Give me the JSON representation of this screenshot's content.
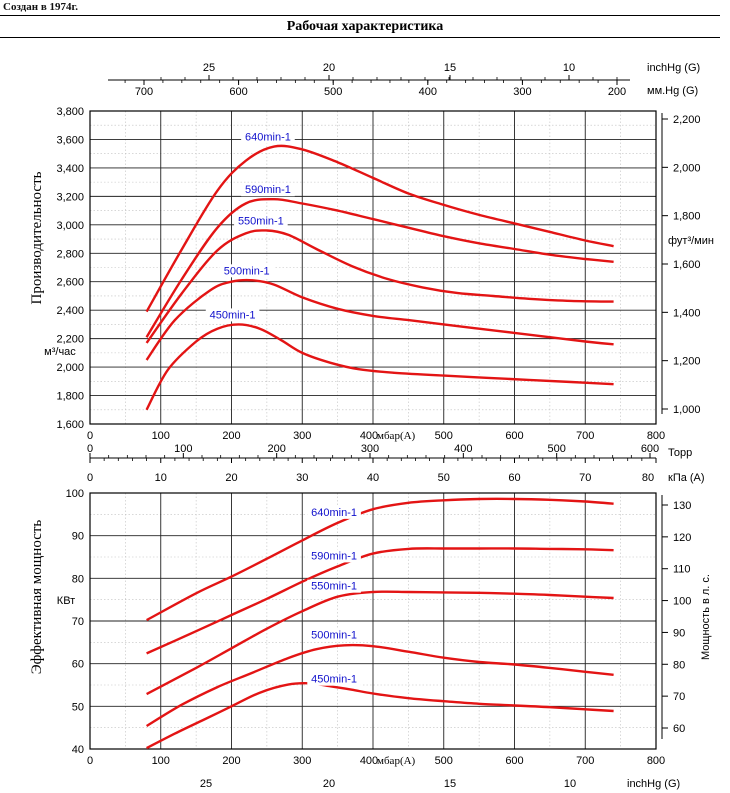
{
  "header": {
    "created": "Создан в 1974г.",
    "title": "Рабочая характеристика"
  },
  "colors": {
    "curve": "#e31414",
    "curve_label": "#1010cc",
    "grid": "#222222",
    "minor_grid": "#c0c0c0"
  },
  "chart_data": [
    {
      "type": "line",
      "title": "",
      "xlabel": "мбар(A)",
      "ylabel": "Производительность",
      "ylabel_unit": "м³/час",
      "xlim": [
        0,
        800
      ],
      "ylim": [
        1600,
        3800
      ],
      "x_ticks": [
        0,
        100,
        200,
        300,
        400,
        500,
        600,
        700,
        800
      ],
      "y_ticks": [
        1600,
        1800,
        2000,
        2200,
        2400,
        2600,
        2800,
        3000,
        3200,
        3400,
        3600,
        3800
      ],
      "x_tick_labels": [
        "0",
        "100",
        "200",
        "300",
        "400",
        "500",
        "600",
        "700",
        "800"
      ],
      "y_tick_labels": [
        "1,600",
        "1,800",
        "2,000",
        "2,200",
        "2,400",
        "2,600",
        "2,800",
        "3,000",
        "3,200",
        "3,400",
        "3,600",
        "3,800"
      ],
      "grid": true,
      "secondary_y": {
        "label": "фут³/мин",
        "ticks": [
          1000,
          1200,
          1400,
          1600,
          1800,
          2000,
          2200
        ],
        "tick_labels": [
          "1,000",
          "1,200",
          "1,400",
          "1,600",
          "1,800",
          "2,000",
          "2,200"
        ]
      },
      "top_axes": [
        {
          "label": "inchHg (G)",
          "ticks": [
            25,
            20,
            15,
            10
          ],
          "tick_labels": [
            "25",
            "20",
            "15",
            "10"
          ]
        },
        {
          "label": "мм.Hg (G)",
          "ticks": [
            700,
            600,
            500,
            400,
            300,
            200
          ],
          "tick_labels": [
            "700",
            "600",
            "500",
            "400",
            "300",
            "200"
          ]
        }
      ],
      "series": [
        {
          "name": "640min-1",
          "x": [
            80,
            130,
            180,
            220,
            260,
            300,
            350,
            400,
            450,
            500,
            550,
            600,
            650,
            700,
            740
          ],
          "values": [
            2390,
            2830,
            3240,
            3450,
            3550,
            3530,
            3440,
            3330,
            3220,
            3140,
            3070,
            3010,
            2950,
            2890,
            2850
          ]
        },
        {
          "name": "590min-1",
          "x": [
            80,
            130,
            180,
            220,
            260,
            300,
            350,
            400,
            450,
            500,
            550,
            600,
            650,
            700,
            740
          ],
          "values": [
            2210,
            2620,
            2980,
            3150,
            3180,
            3150,
            3100,
            3040,
            2980,
            2920,
            2870,
            2830,
            2790,
            2760,
            2740
          ]
        },
        {
          "name": "550min-1",
          "x": [
            80,
            130,
            180,
            220,
            250,
            280,
            320,
            370,
            420,
            470,
            520,
            570,
            620,
            680,
            740
          ],
          "values": [
            2170,
            2520,
            2820,
            2940,
            2960,
            2930,
            2830,
            2710,
            2620,
            2560,
            2520,
            2500,
            2480,
            2465,
            2460
          ]
        },
        {
          "name": "500min-1",
          "x": [
            80,
            120,
            170,
            200,
            230,
            260,
            300,
            350,
            400,
            450,
            500,
            550,
            600,
            650,
            700,
            740
          ],
          "values": [
            2050,
            2330,
            2540,
            2600,
            2610,
            2580,
            2490,
            2410,
            2360,
            2330,
            2300,
            2270,
            2240,
            2210,
            2180,
            2160
          ]
        },
        {
          "name": "450min-1",
          "x": [
            80,
            110,
            150,
            180,
            210,
            240,
            270,
            300,
            340,
            380,
            430,
            500,
            560,
            620,
            680,
            740
          ],
          "values": [
            1700,
            1980,
            2180,
            2270,
            2300,
            2270,
            2190,
            2100,
            2030,
            1985,
            1960,
            1940,
            1925,
            1910,
            1895,
            1880
          ]
        }
      ]
    },
    {
      "type": "line",
      "title": "",
      "xlabel": "мбар(A)",
      "ylabel": "Эффективная мощность",
      "ylabel_unit": "КВт",
      "xlim": [
        0,
        800
      ],
      "ylim": [
        40,
        100
      ],
      "x_ticks": [
        0,
        100,
        200,
        300,
        400,
        500,
        600,
        700,
        800
      ],
      "y_ticks": [
        40,
        50,
        60,
        70,
        80,
        90,
        100
      ],
      "x_tick_labels": [
        "0",
        "100",
        "200",
        "300",
        "400",
        "500",
        "600",
        "700",
        "800"
      ],
      "y_tick_labels": [
        "40",
        "50",
        "60",
        "70",
        "80",
        "90",
        "100"
      ],
      "grid": true,
      "secondary_y": {
        "label": "Мощность в л. с.",
        "ticks": [
          60,
          70,
          80,
          90,
          100,
          110,
          120,
          130
        ],
        "tick_labels": [
          "60",
          "70",
          "80",
          "90",
          "100",
          "110",
          "120",
          "130"
        ]
      },
      "top_axes": [
        {
          "label": "Торр",
          "ticks": [
            0,
            100,
            200,
            300,
            400,
            500,
            600
          ],
          "tick_labels": [
            "0",
            "100",
            "200",
            "300",
            "400",
            "500",
            "600"
          ]
        },
        {
          "label": "кПа (A)",
          "ticks": [
            0,
            10,
            20,
            30,
            40,
            50,
            60,
            70,
            80
          ],
          "tick_labels": [
            "0",
            "10",
            "20",
            "30",
            "40",
            "50",
            "60",
            "70",
            "80"
          ]
        }
      ],
      "bottom_axis": {
        "label": "inchHg (G)",
        "ticks": [
          25,
          20,
          15,
          10
        ],
        "tick_labels": [
          "25",
          "20",
          "15",
          "10"
        ]
      },
      "series": [
        {
          "name": "640min-1",
          "x": [
            80,
            150,
            200,
            250,
            300,
            350,
            400,
            450,
            500,
            550,
            600,
            650,
            700,
            740
          ],
          "values": [
            70.2,
            76.5,
            80.4,
            84.6,
            88.9,
            93.0,
            96.2,
            97.7,
            98.3,
            98.6,
            98.6,
            98.4,
            98.0,
            97.5
          ]
        },
        {
          "name": "590min-1",
          "x": [
            80,
            150,
            200,
            250,
            300,
            350,
            400,
            450,
            500,
            550,
            600,
            650,
            700,
            740
          ],
          "values": [
            62.4,
            67.6,
            71.4,
            75.2,
            79.2,
            82.8,
            85.8,
            86.9,
            87.0,
            87.0,
            87.0,
            86.9,
            86.8,
            86.6
          ]
        },
        {
          "name": "550min-1",
          "x": [
            80,
            150,
            200,
            250,
            300,
            350,
            400,
            450,
            500,
            550,
            600,
            650,
            700,
            740
          ],
          "values": [
            52.9,
            59.0,
            63.6,
            68.2,
            72.3,
            75.7,
            76.8,
            76.8,
            76.7,
            76.6,
            76.4,
            76.1,
            75.7,
            75.4
          ]
        },
        {
          "name": "500min-1",
          "x": [
            80,
            130,
            180,
            230,
            280,
            320,
            360,
            400,
            450,
            500,
            550,
            600,
            650,
            700,
            740
          ],
          "values": [
            45.4,
            50.4,
            54.5,
            57.9,
            61.3,
            63.4,
            64.3,
            64.1,
            62.8,
            61.4,
            60.4,
            59.8,
            59.0,
            58.1,
            57.4
          ]
        },
        {
          "name": "450min-1",
          "x": [
            80,
            120,
            160,
            200,
            240,
            280,
            310,
            340,
            370,
            400,
            450,
            500,
            550,
            600,
            650,
            700,
            740
          ],
          "values": [
            40.2,
            43.6,
            46.8,
            50.0,
            53.2,
            55.1,
            55.4,
            54.7,
            53.9,
            53.0,
            51.9,
            51.2,
            50.6,
            50.2,
            49.8,
            49.3,
            48.9
          ]
        }
      ]
    }
  ]
}
